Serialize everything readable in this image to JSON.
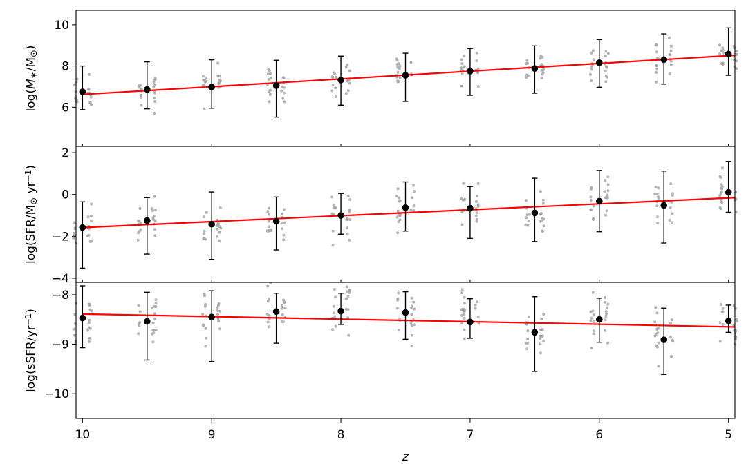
{
  "chart_data": {
    "type": "scatter",
    "shared_x": {
      "label": "z",
      "xlim": [
        10.05,
        4.95
      ],
      "ticks": [
        10,
        9,
        8,
        7,
        6,
        5
      ],
      "tick_labels": [
        "10",
        "9",
        "8",
        "7",
        "6",
        "5"
      ]
    },
    "colors": {
      "points": "#a6a6a6",
      "means": "#000000",
      "fit": "#ff0000"
    },
    "panels": [
      {
        "id": "mass",
        "ylabel_parts": [
          {
            "t": "log("
          },
          {
            "t": "M",
            "style": "italic"
          },
          {
            "t": "∗",
            "shift": "sub"
          },
          {
            "t": "/M"
          },
          {
            "t": "⊙",
            "shift": "sub"
          },
          {
            "t": ")"
          }
        ],
        "ylim": [
          4.1,
          10.7
        ],
        "yticks": [
          6,
          8,
          10
        ],
        "ytick_labels": [
          "6",
          "8",
          "10"
        ],
        "means": [
          {
            "z": 10.0,
            "y": 6.75,
            "lo": 5.88,
            "hi": 8.0
          },
          {
            "z": 9.5,
            "y": 6.86,
            "lo": 5.92,
            "hi": 8.2
          },
          {
            "z": 9.0,
            "y": 6.98,
            "lo": 5.95,
            "hi": 8.3
          },
          {
            "z": 8.5,
            "y": 7.05,
            "lo": 5.52,
            "hi": 8.28
          },
          {
            "z": 8.0,
            "y": 7.32,
            "lo": 6.1,
            "hi": 8.48
          },
          {
            "z": 7.5,
            "y": 7.55,
            "lo": 6.28,
            "hi": 8.62
          },
          {
            "z": 7.0,
            "y": 7.75,
            "lo": 6.58,
            "hi": 8.85
          },
          {
            "z": 6.5,
            "y": 7.88,
            "lo": 6.68,
            "hi": 8.98
          },
          {
            "z": 6.0,
            "y": 8.16,
            "lo": 6.97,
            "hi": 9.28
          },
          {
            "z": 5.5,
            "y": 8.31,
            "lo": 7.12,
            "hi": 9.56
          },
          {
            "z": 5.0,
            "y": 8.58,
            "lo": 7.55,
            "hi": 9.85
          }
        ],
        "fit": {
          "z": [
            10.0,
            4.95
          ],
          "y": [
            6.62,
            8.52
          ]
        },
        "scatter": {
          "spread": 1.15,
          "n": 20,
          "seed": 11
        }
      },
      {
        "id": "sfr",
        "ylabel_parts": [
          {
            "t": "log(SFR/M"
          },
          {
            "t": "⊙",
            "shift": "sub"
          },
          {
            "t": " yr"
          },
          {
            "t": "−1",
            "shift": "sup"
          },
          {
            "t": ")"
          }
        ],
        "ylim": [
          -4.2,
          2.3
        ],
        "yticks": [
          -4,
          -2,
          0,
          2
        ],
        "ytick_labels": [
          "−4",
          "−2",
          "0",
          "2"
        ],
        "means": [
          {
            "z": 10.0,
            "y": -1.58,
            "lo": -3.52,
            "hi": -0.35
          },
          {
            "z": 9.5,
            "y": -1.25,
            "lo": -2.85,
            "hi": -0.15
          },
          {
            "z": 9.0,
            "y": -1.42,
            "lo": -3.1,
            "hi": 0.12
          },
          {
            "z": 8.5,
            "y": -1.28,
            "lo": -2.65,
            "hi": -0.12
          },
          {
            "z": 8.0,
            "y": -1.0,
            "lo": -1.9,
            "hi": 0.05
          },
          {
            "z": 7.5,
            "y": -0.63,
            "lo": -1.75,
            "hi": 0.6
          },
          {
            "z": 7.0,
            "y": -0.66,
            "lo": -2.1,
            "hi": 0.38
          },
          {
            "z": 6.5,
            "y": -0.88,
            "lo": -2.25,
            "hi": 0.78
          },
          {
            "z": 6.0,
            "y": -0.32,
            "lo": -1.78,
            "hi": 1.15
          },
          {
            "z": 5.5,
            "y": -0.52,
            "lo": -2.32,
            "hi": 1.12
          },
          {
            "z": 5.0,
            "y": 0.1,
            "lo": -0.85,
            "hi": 1.58
          }
        ],
        "fit": {
          "z": [
            10.0,
            4.95
          ],
          "y": [
            -1.58,
            -0.15
          ]
        },
        "scatter": {
          "spread": 1.45,
          "n": 20,
          "seed": 23
        }
      },
      {
        "id": "ssfr",
        "ylabel_parts": [
          {
            "t": "log(sSFR/yr"
          },
          {
            "t": "−1",
            "shift": "sup"
          },
          {
            "t": ")"
          }
        ],
        "ylim": [
          -10.5,
          -7.75
        ],
        "yticks": [
          -10,
          -9,
          -8
        ],
        "ytick_labels": [
          "−10",
          "−9",
          "−8"
        ],
        "means": [
          {
            "z": 10.0,
            "y": -8.47,
            "lo": -9.07,
            "hi": -7.82
          },
          {
            "z": 9.5,
            "y": -8.54,
            "lo": -9.32,
            "hi": -7.95
          },
          {
            "z": 9.0,
            "y": -8.45,
            "lo": -9.35,
            "hi": -7.92
          },
          {
            "z": 8.5,
            "y": -8.34,
            "lo": -8.98,
            "hi": -7.97
          },
          {
            "z": 8.0,
            "y": -8.33,
            "lo": -8.6,
            "hi": -7.97
          },
          {
            "z": 7.5,
            "y": -8.36,
            "lo": -8.9,
            "hi": -7.94
          },
          {
            "z": 7.0,
            "y": -8.55,
            "lo": -8.88,
            "hi": -8.08
          },
          {
            "z": 6.5,
            "y": -8.76,
            "lo": -9.55,
            "hi": -8.04
          },
          {
            "z": 6.0,
            "y": -8.5,
            "lo": -8.96,
            "hi": -8.07
          },
          {
            "z": 5.5,
            "y": -8.91,
            "lo": -9.61,
            "hi": -8.27
          },
          {
            "z": 5.0,
            "y": -8.53,
            "lo": -8.76,
            "hi": -8.21
          }
        ],
        "fit": {
          "z": [
            10.0,
            4.95
          ],
          "y": [
            -8.39,
            -8.65
          ]
        },
        "scatter": {
          "spread": 0.75,
          "n": 20,
          "seed": 37
        }
      }
    ]
  }
}
